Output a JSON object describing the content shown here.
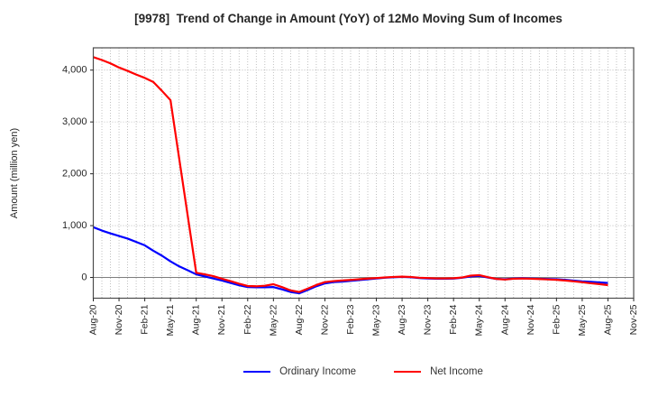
{
  "chart_data": {
    "type": "line",
    "title": "[9978]  Trend of Change in Amount (YoY) of 12Mo Moving Sum of Incomes",
    "ylabel": "Amount (million yen)",
    "xlabel": "",
    "x_resolution": "monthly",
    "x_tick_labels": [
      "Aug-20",
      "Nov-20",
      "Feb-21",
      "May-21",
      "Aug-21",
      "Nov-21",
      "Feb-22",
      "May-22",
      "Aug-22",
      "Nov-22",
      "Feb-23",
      "May-23",
      "Aug-23",
      "Nov-23",
      "Feb-24",
      "May-24",
      "Aug-24",
      "Nov-24",
      "Feb-25",
      "May-25",
      "Aug-25",
      "Nov-25"
    ],
    "x_data_start": "Aug-20",
    "x_data_end": "Aug-25",
    "ylim": [
      -400,
      4430
    ],
    "yticks": [
      0,
      1000,
      2000,
      3000,
      4000
    ],
    "ytick_labels": [
      "0",
      "1,000",
      "2,000",
      "3,000",
      "4,000"
    ],
    "grid": true,
    "legend_position": "bottom",
    "series": [
      {
        "name": "Ordinary Income",
        "color": "#0000ff",
        "values": [
          970,
          905,
          850,
          800,
          750,
          685,
          620,
          515,
          420,
          310,
          215,
          140,
          60,
          20,
          -20,
          -60,
          -105,
          -150,
          -185,
          -190,
          -190,
          -185,
          -230,
          -280,
          -305,
          -240,
          -170,
          -115,
          -90,
          -80,
          -65,
          -50,
          -35,
          -20,
          -5,
          5,
          10,
          5,
          -10,
          -20,
          -25,
          -25,
          -22,
          -5,
          20,
          30,
          0,
          -28,
          -35,
          -22,
          -15,
          -20,
          -25,
          -30,
          -35,
          -45,
          -60,
          -75,
          -85,
          -95,
          -105
        ]
      },
      {
        "name": "Net Income",
        "color": "#ff0000",
        "values": [
          4250,
          4195,
          4130,
          4050,
          3985,
          3915,
          3850,
          3770,
          3600,
          3420,
          2310,
          1200,
          90,
          60,
          25,
          -25,
          -70,
          -120,
          -165,
          -170,
          -160,
          -130,
          -185,
          -250,
          -280,
          -215,
          -145,
          -90,
          -70,
          -58,
          -48,
          -35,
          -22,
          -12,
          0,
          10,
          15,
          10,
          -5,
          -12,
          -18,
          -18,
          -15,
          0,
          35,
          45,
          5,
          -28,
          -40,
          -25,
          -20,
          -25,
          -30,
          -38,
          -45,
          -58,
          -75,
          -92,
          -112,
          -128,
          -148
        ]
      }
    ]
  }
}
